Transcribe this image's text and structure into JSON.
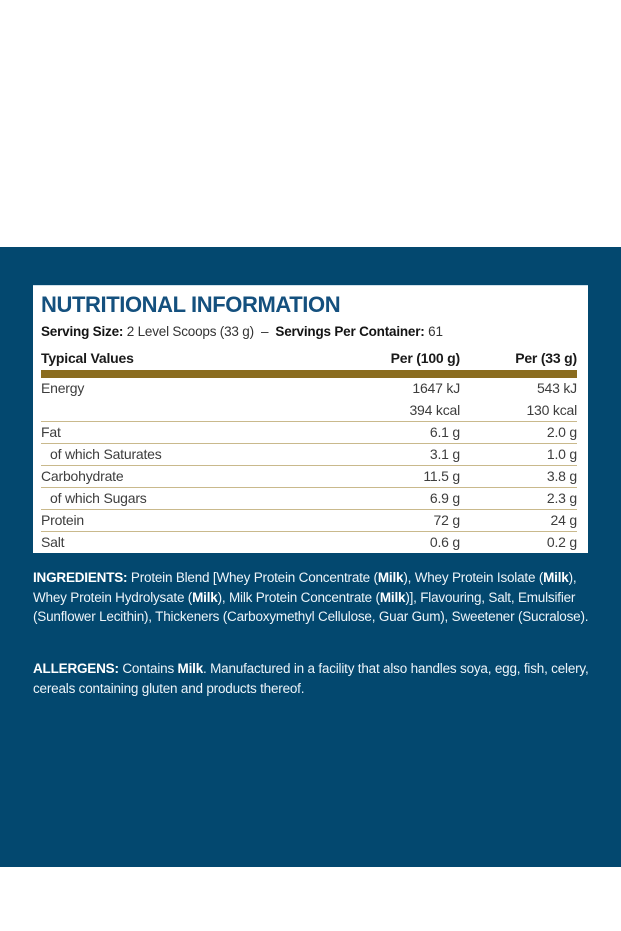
{
  "label": {
    "colors": {
      "background_blue": "#03486F",
      "gold_bar": "#8A6C1F",
      "row_separator": "#C9B98C",
      "heading_blue": "#14507E"
    },
    "title": "NUTRITIONAL INFORMATION",
    "serving_line": {
      "segments": [
        {
          "text": "Serving Size: ",
          "bold": true
        },
        {
          "text": "2 Level Scoops (33 g)",
          "bold": false
        },
        {
          "text": "  –  ",
          "bold": false
        },
        {
          "text": "Servings Per Container: ",
          "bold": true
        },
        {
          "text": "61",
          "bold": false
        }
      ]
    },
    "table": {
      "header": {
        "typical_values": "Typical Values",
        "per_100g": "Per (100 g)",
        "per_33g": "Per (33 g)"
      },
      "rows": [
        {
          "label": "Energy",
          "indent": false,
          "per_100g": "1647 kJ",
          "per_33g": "543 kJ",
          "separator_after": false
        },
        {
          "label": "",
          "indent": false,
          "per_100g": "394 kcal",
          "per_33g": "130 kcal",
          "separator_after": true
        },
        {
          "label": "Fat",
          "indent": false,
          "per_100g": "6.1 g",
          "per_33g": "2.0 g",
          "separator_after": true
        },
        {
          "label": "of which Saturates",
          "indent": true,
          "per_100g": "3.1 g",
          "per_33g": "1.0 g",
          "separator_after": true
        },
        {
          "label": "Carbohydrate",
          "indent": false,
          "per_100g": "11.5 g",
          "per_33g": "3.8 g",
          "separator_after": true
        },
        {
          "label": "of which Sugars",
          "indent": true,
          "per_100g": "6.9 g",
          "per_33g": "2.3 g",
          "separator_after": true
        },
        {
          "label": "Protein",
          "indent": false,
          "per_100g": "72 g",
          "per_33g": "24 g",
          "separator_after": true
        },
        {
          "label": "Salt",
          "indent": false,
          "per_100g": "0.6 g",
          "per_33g": "0.2 g",
          "separator_after": false
        }
      ]
    },
    "ingredients": {
      "segments": [
        {
          "text": "INGREDIENTS: ",
          "bold": true
        },
        {
          "text": "Protein Blend [Whey Protein Concentrate (",
          "bold": false
        },
        {
          "text": "Milk",
          "bold": true
        },
        {
          "text": "), Whey Protein Isolate (",
          "bold": false
        },
        {
          "text": "Milk",
          "bold": true
        },
        {
          "text": "), Whey Protein Hydrolysate (",
          "bold": false
        },
        {
          "text": "Milk",
          "bold": true
        },
        {
          "text": "), Milk Protein Concentrate (",
          "bold": false
        },
        {
          "text": "Milk",
          "bold": true
        },
        {
          "text": ")], Flavouring, Salt, Emulsifier (Sunflower Lecithin), Thickeners (Carboxymethyl Cellulose, Guar Gum), Sweetener (Sucralose).",
          "bold": false
        }
      ]
    },
    "allergens": {
      "segments": [
        {
          "text": "ALLERGENS: ",
          "bold": true
        },
        {
          "text": "Contains ",
          "bold": false
        },
        {
          "text": "Milk",
          "bold": true
        },
        {
          "text": ". Manufactured in a facility that also handles soya, egg, fish, celery, cereals containing gluten and products thereof.",
          "bold": false
        }
      ]
    }
  }
}
